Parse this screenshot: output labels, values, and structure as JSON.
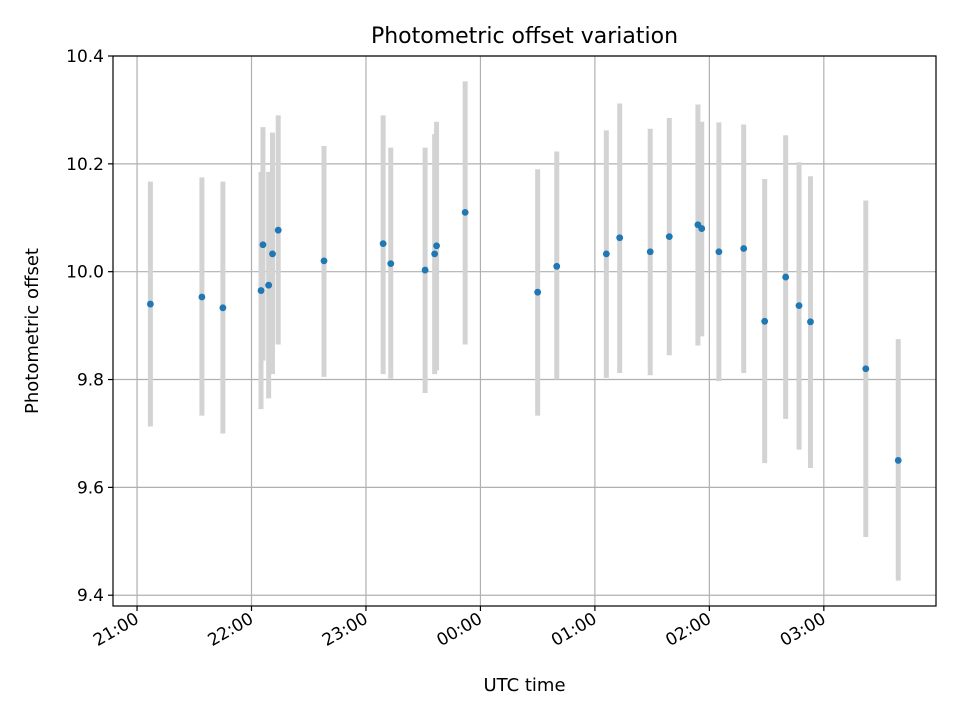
{
  "chart_data": {
    "type": "scatter",
    "title": "Photometric offset variation",
    "xlabel": "UTC time",
    "ylabel": "Photometric offset",
    "ylim": [
      9.38,
      10.4
    ],
    "xlim_hours": [
      20.79,
      27.98
    ],
    "grid": true,
    "marker_color": "#1f77b4",
    "errorbar_color": "#d3d3d3",
    "x_ticks": [
      {
        "label": "21:00",
        "value": 21.0
      },
      {
        "label": "22:00",
        "value": 22.0
      },
      {
        "label": "23:00",
        "value": 23.0
      },
      {
        "label": "00:00",
        "value": 24.0
      },
      {
        "label": "01:00",
        "value": 25.0
      },
      {
        "label": "02:00",
        "value": 26.0
      },
      {
        "label": "03:00",
        "value": 27.0
      }
    ],
    "y_ticks": [
      {
        "label": "9.4",
        "value": 9.4
      },
      {
        "label": "9.6",
        "value": 9.6
      },
      {
        "label": "9.8",
        "value": 9.8
      },
      {
        "label": "10.0",
        "value": 10.0
      },
      {
        "label": "10.2",
        "value": 10.2
      },
      {
        "label": "10.4",
        "value": 10.4
      }
    ],
    "points": [
      {
        "x": "21:07",
        "y": 9.94,
        "ylow": 9.713,
        "yhigh": 10.167
      },
      {
        "x": "21:34",
        "y": 9.953,
        "ylow": 9.733,
        "yhigh": 10.175
      },
      {
        "x": "21:45",
        "y": 9.933,
        "ylow": 9.7,
        "yhigh": 10.167
      },
      {
        "x": "22:05",
        "y": 9.965,
        "ylow": 9.745,
        "yhigh": 10.185
      },
      {
        "x": "22:06",
        "y": 10.05,
        "ylow": 9.835,
        "yhigh": 10.268
      },
      {
        "x": "22:09",
        "y": 9.975,
        "ylow": 9.765,
        "yhigh": 10.185
      },
      {
        "x": "22:11",
        "y": 10.033,
        "ylow": 9.81,
        "yhigh": 10.258
      },
      {
        "x": "22:14",
        "y": 10.077,
        "ylow": 9.865,
        "yhigh": 10.29
      },
      {
        "x": "22:38",
        "y": 10.02,
        "ylow": 9.805,
        "yhigh": 10.233
      },
      {
        "x": "23:09",
        "y": 10.052,
        "ylow": 9.81,
        "yhigh": 10.29
      },
      {
        "x": "23:13",
        "y": 10.015,
        "ylow": 9.802,
        "yhigh": 10.23
      },
      {
        "x": "23:31",
        "y": 10.003,
        "ylow": 9.775,
        "yhigh": 10.23
      },
      {
        "x": "23:36",
        "y": 10.033,
        "ylow": 9.81,
        "yhigh": 10.255
      },
      {
        "x": "23:37",
        "y": 10.048,
        "ylow": 9.817,
        "yhigh": 10.278
      },
      {
        "x": "23:52",
        "y": 10.11,
        "ylow": 9.865,
        "yhigh": 10.353
      },
      {
        "x": "00:30",
        "y": 9.962,
        "ylow": 9.733,
        "yhigh": 10.19
      },
      {
        "x": "00:40",
        "y": 10.01,
        "ylow": 9.8,
        "yhigh": 10.223
      },
      {
        "x": "01:06",
        "y": 10.033,
        "ylow": 9.803,
        "yhigh": 10.262
      },
      {
        "x": "01:13",
        "y": 10.063,
        "ylow": 9.812,
        "yhigh": 10.312
      },
      {
        "x": "01:29",
        "y": 10.037,
        "ylow": 9.808,
        "yhigh": 10.265
      },
      {
        "x": "01:39",
        "y": 10.065,
        "ylow": 9.845,
        "yhigh": 10.285
      },
      {
        "x": "01:54",
        "y": 10.087,
        "ylow": 9.863,
        "yhigh": 10.31
      },
      {
        "x": "01:56",
        "y": 10.08,
        "ylow": 9.88,
        "yhigh": 10.278
      },
      {
        "x": "02:05",
        "y": 10.037,
        "ylow": 9.797,
        "yhigh": 10.277
      },
      {
        "x": "02:18",
        "y": 10.043,
        "ylow": 9.812,
        "yhigh": 10.273
      },
      {
        "x": "02:29",
        "y": 9.908,
        "ylow": 9.645,
        "yhigh": 10.172
      },
      {
        "x": "02:40",
        "y": 9.99,
        "ylow": 9.727,
        "yhigh": 10.253
      },
      {
        "x": "02:47",
        "y": 9.937,
        "ylow": 9.67,
        "yhigh": 10.203
      },
      {
        "x": "02:53",
        "y": 9.907,
        "ylow": 9.636,
        "yhigh": 10.177
      },
      {
        "x": "03:22",
        "y": 9.82,
        "ylow": 9.508,
        "yhigh": 10.132
      },
      {
        "x": "03:39",
        "y": 9.65,
        "ylow": 9.427,
        "yhigh": 9.875
      }
    ]
  }
}
